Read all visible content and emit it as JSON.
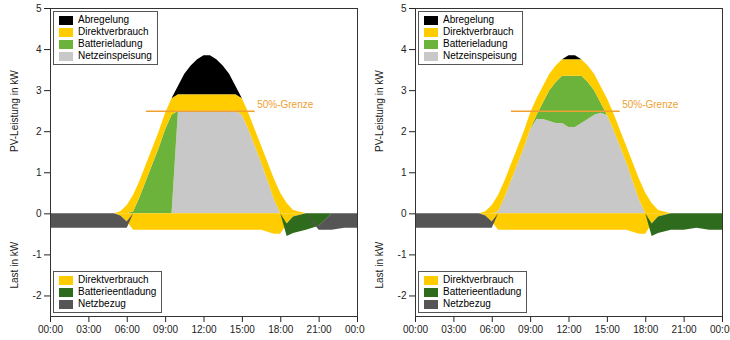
{
  "chart_data": [
    {
      "type": "area",
      "stacked": true,
      "grid": false,
      "legend": "upper left",
      "ylabel": "PV-Leistung in kW",
      "ylabel_lower": "Last in kW",
      "x": [
        0,
        1,
        2,
        3,
        4,
        5,
        5.5,
        6,
        6.5,
        7,
        7.5,
        8,
        8.5,
        9,
        9.5,
        10,
        10.5,
        11,
        11.5,
        12,
        12.5,
        13,
        13.5,
        14,
        14.5,
        15,
        15.5,
        16,
        16.5,
        17,
        17.5,
        18,
        18.5,
        19,
        20,
        21,
        22,
        23,
        24
      ],
      "xlim": [
        0,
        24
      ],
      "xticks": [
        {
          "value": 0,
          "label": "00:00"
        },
        {
          "value": 3,
          "label": "03:00"
        },
        {
          "value": 6,
          "label": "06:00"
        },
        {
          "value": 9,
          "label": "09:00"
        },
        {
          "value": 12,
          "label": "12:00"
        },
        {
          "value": 15,
          "label": "15:00"
        },
        {
          "value": 18,
          "label": "18:00"
        },
        {
          "value": 21,
          "label": "21:00"
        },
        {
          "value": 24,
          "label": "00:00"
        }
      ],
      "ylim": [
        -2.5,
        5
      ],
      "yticks": [
        -2,
        -1,
        0,
        1,
        2,
        3,
        4,
        5
      ],
      "hline": {
        "value": 2.5,
        "label": "50%-Grenze",
        "color": "#f0a030",
        "xrange": [
          7.5,
          16
        ]
      },
      "series": [
        {
          "name": "Abregelung",
          "color": "#000000",
          "values": [
            0,
            0,
            0,
            0,
            0,
            0,
            0,
            0,
            0,
            0,
            0,
            0,
            0,
            0,
            0,
            0.2,
            0.5,
            0.7,
            0.85,
            0.95,
            0.95,
            0.85,
            0.7,
            0.5,
            0.2,
            0,
            0,
            0,
            0,
            0,
            0,
            0,
            0,
            0,
            0,
            0,
            0,
            0,
            0
          ]
        },
        {
          "name": "Direktverbrauch",
          "color": "#ffcc00",
          "values": [
            0,
            0,
            0,
            0,
            0,
            0,
            0.05,
            0.2,
            0.4,
            0.4,
            0.4,
            0.4,
            0.4,
            0.4,
            0.4,
            0.4,
            0.4,
            0.4,
            0.4,
            0.4,
            0.4,
            0.4,
            0.4,
            0.4,
            0.4,
            0.4,
            0.4,
            0.4,
            0.4,
            0.45,
            0.5,
            0.5,
            0.25,
            0.08,
            0,
            0,
            0,
            0,
            0
          ]
        },
        {
          "name": "Batterieladung",
          "color": "#6bb33a",
          "values": [
            0,
            0,
            0,
            0,
            0,
            0,
            0,
            0,
            0.05,
            0.4,
            0.8,
            1.2,
            1.6,
            2.05,
            2.4,
            0,
            0,
            0,
            0,
            0,
            0,
            0,
            0,
            0,
            0,
            0,
            0,
            0,
            0,
            0,
            0,
            0,
            0,
            0,
            0,
            0,
            0,
            0,
            0
          ]
        },
        {
          "name": "Netzeinspeisung",
          "color": "#c8c8c8",
          "values": [
            0,
            0,
            0,
            0,
            0,
            0,
            0,
            0,
            0,
            0,
            0,
            0,
            0,
            0,
            0,
            2.5,
            2.5,
            2.5,
            2.5,
            2.5,
            2.5,
            2.5,
            2.5,
            2.5,
            2.5,
            2.4,
            2.05,
            1.65,
            1.25,
            0.8,
            0.35,
            0,
            0,
            0,
            0,
            0,
            0,
            0,
            0
          ]
        }
      ],
      "load_series": [
        {
          "name": "Direktverbrauch",
          "color": "#ffcc00",
          "values": [
            0,
            0,
            0,
            0,
            0,
            0,
            -0.05,
            -0.2,
            -0.4,
            -0.4,
            -0.4,
            -0.4,
            -0.4,
            -0.4,
            -0.4,
            -0.4,
            -0.4,
            -0.4,
            -0.4,
            -0.4,
            -0.4,
            -0.4,
            -0.4,
            -0.4,
            -0.4,
            -0.4,
            -0.4,
            -0.4,
            -0.4,
            -0.45,
            -0.5,
            -0.5,
            -0.25,
            -0.08,
            0,
            0,
            0,
            0,
            0
          ]
        },
        {
          "name": "Batterieentladung",
          "color": "#2f6b1c",
          "values": [
            0,
            0,
            0,
            0,
            0,
            0,
            0,
            0,
            0,
            0,
            0,
            0,
            0,
            0,
            0,
            0,
            0,
            0,
            0,
            0,
            0,
            0,
            0,
            0,
            0,
            0,
            0,
            0,
            0,
            0,
            0,
            0,
            -0.3,
            -0.4,
            -0.4,
            -0.3,
            0,
            0,
            0
          ]
        },
        {
          "name": "Netzbezug",
          "color": "#555555",
          "values": [
            -0.35,
            -0.35,
            -0.35,
            -0.35,
            -0.35,
            -0.35,
            -0.3,
            -0.15,
            0,
            0,
            0,
            0,
            0,
            0,
            0,
            0,
            0,
            0,
            0,
            0,
            0,
            0,
            0,
            0,
            0,
            0,
            0,
            0,
            0,
            0,
            0,
            0,
            0,
            0,
            0,
            -0.1,
            -0.4,
            -0.35,
            -0.35
          ]
        }
      ]
    },
    {
      "type": "area",
      "stacked": true,
      "grid": false,
      "legend": "upper left",
      "ylabel": "PV-Leistung in kW",
      "ylabel_lower": "Last in kW",
      "x": [
        0,
        1,
        2,
        3,
        4,
        5,
        5.5,
        6,
        6.5,
        7,
        7.5,
        8,
        8.5,
        9,
        9.5,
        10,
        10.5,
        11,
        11.5,
        12,
        12.5,
        13,
        13.5,
        14,
        14.5,
        15,
        15.5,
        16,
        16.5,
        17,
        17.5,
        18,
        18.5,
        19,
        20,
        21,
        22,
        23,
        24
      ],
      "xlim": [
        0,
        24
      ],
      "xticks": [
        {
          "value": 0,
          "label": "00:00"
        },
        {
          "value": 3,
          "label": "03:00"
        },
        {
          "value": 6,
          "label": "06:00"
        },
        {
          "value": 9,
          "label": "09:00"
        },
        {
          "value": 12,
          "label": "12:00"
        },
        {
          "value": 15,
          "label": "15:00"
        },
        {
          "value": 18,
          "label": "18:00"
        },
        {
          "value": 21,
          "label": "21:00"
        },
        {
          "value": 24,
          "label": "00:00"
        }
      ],
      "ylim": [
        -2.5,
        5
      ],
      "yticks": [
        -2,
        -1,
        0,
        1,
        2,
        3,
        4,
        5
      ],
      "hline": {
        "value": 2.5,
        "label": "50%-Grenze",
        "color": "#f0a030",
        "xrange": [
          7.5,
          16
        ]
      },
      "series": [
        {
          "name": "Abregelung",
          "color": "#000000",
          "values": [
            0,
            0,
            0,
            0,
            0,
            0,
            0,
            0,
            0,
            0,
            0,
            0,
            0,
            0,
            0,
            0,
            0,
            0,
            0,
            0.1,
            0.1,
            0,
            0,
            0,
            0,
            0,
            0,
            0,
            0,
            0,
            0,
            0,
            0,
            0,
            0,
            0,
            0,
            0,
            0
          ]
        },
        {
          "name": "Direktverbrauch",
          "color": "#ffcc00",
          "values": [
            0,
            0,
            0,
            0,
            0,
            0,
            0.05,
            0.2,
            0.4,
            0.4,
            0.4,
            0.4,
            0.4,
            0.4,
            0.4,
            0.4,
            0.4,
            0.4,
            0.4,
            0.4,
            0.4,
            0.4,
            0.4,
            0.4,
            0.4,
            0.4,
            0.4,
            0.4,
            0.4,
            0.45,
            0.5,
            0.5,
            0.25,
            0.08,
            0,
            0,
            0,
            0,
            0
          ]
        },
        {
          "name": "Batterieladung",
          "color": "#6bb33a",
          "values": [
            0,
            0,
            0,
            0,
            0,
            0,
            0,
            0,
            0,
            0,
            0,
            0,
            0,
            0,
            0.1,
            0.4,
            0.75,
            1.0,
            1.15,
            1.25,
            1.25,
            1.15,
            0.9,
            0.6,
            0.25,
            0,
            0,
            0,
            0,
            0,
            0,
            0,
            0,
            0,
            0,
            0,
            0,
            0,
            0
          ]
        },
        {
          "name": "Netzeinspeisung",
          "color": "#c8c8c8",
          "values": [
            0,
            0,
            0,
            0,
            0,
            0,
            0,
            0,
            0.05,
            0.4,
            0.8,
            1.2,
            1.6,
            2.05,
            2.3,
            2.3,
            2.25,
            2.2,
            2.2,
            2.1,
            2.1,
            2.2,
            2.3,
            2.4,
            2.45,
            2.4,
            2.05,
            1.65,
            1.25,
            0.8,
            0.35,
            0,
            0,
            0,
            0,
            0,
            0,
            0,
            0
          ]
        }
      ],
      "load_series": [
        {
          "name": "Direktverbrauch",
          "color": "#ffcc00",
          "values": [
            0,
            0,
            0,
            0,
            0,
            0,
            -0.05,
            -0.2,
            -0.4,
            -0.4,
            -0.4,
            -0.4,
            -0.4,
            -0.4,
            -0.4,
            -0.4,
            -0.4,
            -0.4,
            -0.4,
            -0.4,
            -0.4,
            -0.4,
            -0.4,
            -0.4,
            -0.4,
            -0.4,
            -0.4,
            -0.4,
            -0.4,
            -0.45,
            -0.5,
            -0.5,
            -0.25,
            -0.08,
            0,
            0,
            0,
            0,
            0
          ]
        },
        {
          "name": "Batterieentladung",
          "color": "#2f6b1c",
          "values": [
            0,
            0,
            0,
            0,
            0,
            0,
            0,
            0,
            0,
            0,
            0,
            0,
            0,
            0,
            0,
            0,
            0,
            0,
            0,
            0,
            0,
            0,
            0,
            0,
            0,
            0,
            0,
            0,
            0,
            0,
            0,
            0,
            -0.3,
            -0.4,
            -0.4,
            -0.4,
            -0.35,
            -0.4,
            -0.4
          ]
        },
        {
          "name": "Netzbezug",
          "color": "#555555",
          "values": [
            -0.35,
            -0.35,
            -0.35,
            -0.35,
            -0.35,
            -0.35,
            -0.3,
            -0.15,
            0,
            0,
            0,
            0,
            0,
            0,
            0,
            0,
            0,
            0,
            0,
            0,
            0,
            0,
            0,
            0,
            0,
            0,
            0,
            0,
            0,
            0,
            0,
            0,
            0,
            0,
            0,
            0,
            0,
            0,
            0
          ]
        }
      ]
    }
  ]
}
